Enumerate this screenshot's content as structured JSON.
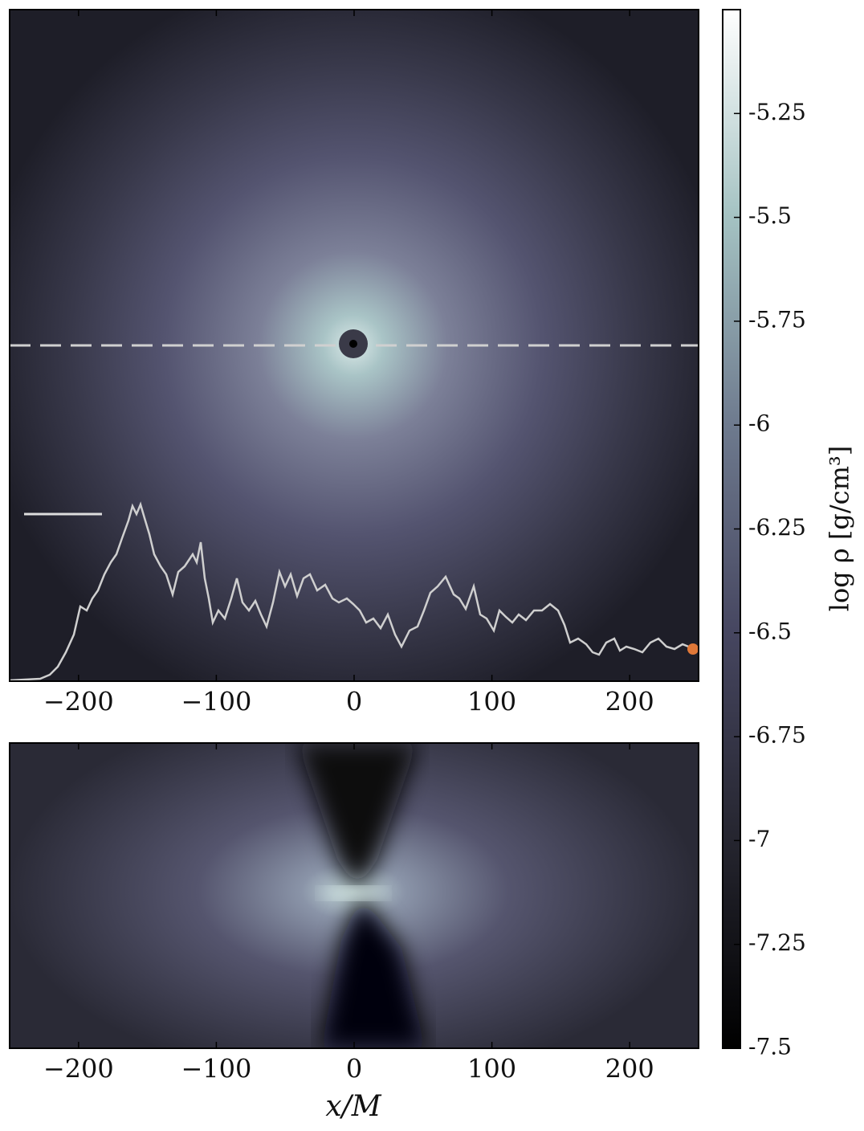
{
  "chart_data": [
    {
      "type": "heatmap",
      "xlim": [
        -250,
        250
      ],
      "xticks": [
        {
          "value": -200,
          "label": "−200"
        },
        {
          "value": -100,
          "label": "−100"
        },
        0,
        100,
        200
      ],
      "colorbar": {
        "label": "log ρ [g/cm³]",
        "lim": [
          -7.5,
          -5.0
        ],
        "ticks": [
          -5.25,
          -5.5,
          -5.75,
          -6,
          -6.25,
          -6.5,
          -6.75,
          -7,
          -7.25,
          -7.5
        ]
      }
    },
    {
      "type": "heatmap",
      "xlim": [
        -250,
        250
      ],
      "xticks": [
        {
          "value": -200,
          "label": "−200"
        },
        {
          "value": -100,
          "label": "−100"
        },
        0,
        100,
        200
      ],
      "xlabel": "x/M"
    }
  ]
}
